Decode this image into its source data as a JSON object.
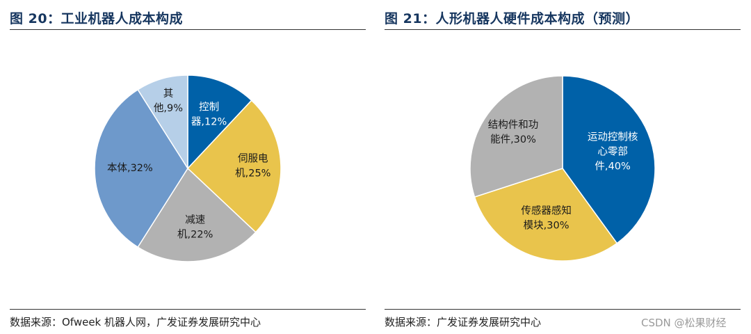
{
  "chart_data": [
    {
      "type": "pie",
      "title": "图 20：工业机器人成本构成",
      "source": "数据来源：Ofweek 机器人网，广发证券发展研究中心",
      "slices": [
        {
          "label_lines": [
            "控制",
            "器,12%"
          ],
          "value": 12,
          "color": "#0061a8",
          "text_color": "#ffffff"
        },
        {
          "label_lines": [
            "伺服电",
            "机,25%"
          ],
          "value": 25,
          "color": "#e9c44c",
          "text_color": "#1a1a1a"
        },
        {
          "label_lines": [
            "减速",
            "机,22%"
          ],
          "value": 22,
          "color": "#b2b2b2",
          "text_color": "#1a1a1a"
        },
        {
          "label_lines": [
            "本体,32%"
          ],
          "value": 32,
          "color": "#6e99cb",
          "text_color": "#1a1a1a"
        },
        {
          "label_lines": [
            "其",
            "他,9%"
          ],
          "value": 9,
          "color": "#b6cfe8",
          "text_color": "#1a1a1a"
        }
      ]
    },
    {
      "type": "pie",
      "title": "图 21：人形机器人硬件成本构成（预测）",
      "source": "数据来源：广发证券发展研究中心",
      "slices": [
        {
          "label_lines": [
            "运动控制核",
            "心零部",
            "件,40%"
          ],
          "value": 40,
          "color": "#0061a8",
          "text_color": "#ffffff"
        },
        {
          "label_lines": [
            "传感器感知",
            "模块,30%"
          ],
          "value": 30,
          "color": "#e9c44c",
          "text_color": "#1a1a1a"
        },
        {
          "label_lines": [
            "结构件和功",
            "能件,30%"
          ],
          "value": 30,
          "color": "#b2b2b2",
          "text_color": "#1a1a1a"
        }
      ]
    }
  ],
  "watermark": "CSDN @松果财经"
}
